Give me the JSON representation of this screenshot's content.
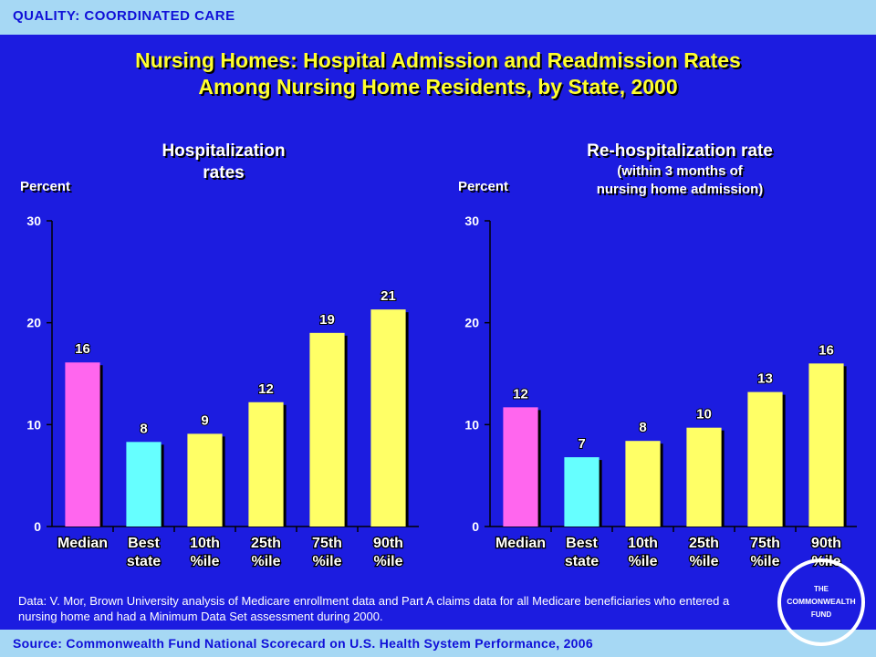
{
  "section_label": "QUALITY: COORDINATED CARE",
  "title_line1": "Nursing Homes: Hospital Admission and Readmission Rates",
  "title_line2": "Among Nursing Home Residents, by State, 2000",
  "data_note": "Data: V. Mor, Brown University analysis of Medicare enrollment data and Part A claims data for all Medicare beneficiaries who entered a nursing home and had a Minimum Data Set assessment during 2000.",
  "source": "Source: Commonwealth Fund National Scorecard on U.S. Health System Performance, 2006",
  "logo_text": [
    "THE",
    "COMMONWEALTH",
    "FUND"
  ],
  "colors": {
    "background": "#1c1ce0",
    "band": "#a6d8f4",
    "median": "#ff66ee",
    "best_state": "#66ffff",
    "percentile": "#ffff66",
    "title": "#ffff2e"
  },
  "chart_data": [
    {
      "type": "bar",
      "title_line1": "Hospitalization",
      "title_line2": "rates",
      "ylabel": "Percent",
      "ylim": [
        0,
        30
      ],
      "yticks": [
        0,
        10,
        20,
        30
      ],
      "categories": [
        [
          "Median"
        ],
        [
          "Best",
          "state"
        ],
        [
          "10th",
          "%ile"
        ],
        [
          "25th",
          "%ile"
        ],
        [
          "75th",
          "%ile"
        ],
        [
          "90th",
          "%ile"
        ]
      ],
      "values": [
        16.1,
        8.3,
        9.1,
        12.2,
        19.0,
        21.3
      ],
      "data_labels": [
        "16",
        "8",
        "9",
        "12",
        "19",
        "21"
      ],
      "bar_colors": [
        "#ff66ee",
        "#66ffff",
        "#ffff66",
        "#ffff66",
        "#ffff66",
        "#ffff66"
      ]
    },
    {
      "type": "bar",
      "title_line1": "Re-hospitalization rate",
      "title_line2": "(within 3 months of",
      "title_line3": "nursing home admission)",
      "ylabel": "Percent",
      "ylim": [
        0,
        30
      ],
      "yticks": [
        0,
        10,
        20,
        30
      ],
      "categories": [
        [
          "Median"
        ],
        [
          "Best",
          "state"
        ],
        [
          "10th",
          "%ile"
        ],
        [
          "25th",
          "%ile"
        ],
        [
          "75th",
          "%ile"
        ],
        [
          "90th",
          "%ile"
        ]
      ],
      "values": [
        11.7,
        6.8,
        8.4,
        9.7,
        13.2,
        16.0
      ],
      "data_labels": [
        "12",
        "7",
        "8",
        "10",
        "13",
        "16"
      ],
      "bar_colors": [
        "#ff66ee",
        "#66ffff",
        "#ffff66",
        "#ffff66",
        "#ffff66",
        "#ffff66"
      ]
    }
  ]
}
